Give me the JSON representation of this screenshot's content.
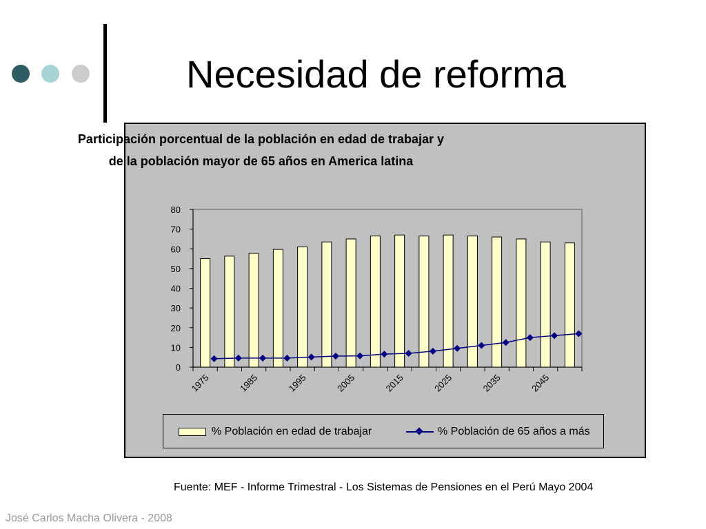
{
  "slide": {
    "title": "Necesidad de reforma",
    "source": "Fuente: MEF - Informe Trimestral - Los Sistemas de Pensiones en el Perú Mayo 2004",
    "footer": "José Carlos Macha Olivera - 2008",
    "colors": {
      "dot1": "#2e5e63",
      "dot2": "#a9d4d6",
      "dot3": "#cccccc"
    }
  },
  "chart_data": {
    "type": "bar",
    "title_line1": "Participación porcentual de la población en edad de trabajar y",
    "title_line2": "de la población mayor de 65 años en America latina",
    "categories": [
      "1975",
      "1980",
      "1985",
      "1990",
      "1995",
      "2000",
      "2005",
      "2010",
      "2015",
      "2020",
      "2025",
      "2030",
      "2035",
      "2040",
      "2045",
      "2050"
    ],
    "tick_labels": [
      "1975",
      "1985",
      "1995",
      "2005",
      "2015",
      "2025",
      "2035",
      "2045"
    ],
    "ylim": [
      0,
      80
    ],
    "yticks": [
      0,
      10,
      20,
      30,
      40,
      50,
      60,
      70,
      80
    ],
    "series": [
      {
        "name": "%  Población en edad de trabajar",
        "kind": "bar",
        "color": "#ffffcc",
        "values": [
          55,
          56.3,
          57.7,
          59.7,
          61,
          63.5,
          65,
          66.5,
          67,
          66.5,
          67,
          66.5,
          66,
          65,
          63.5,
          63
        ]
      },
      {
        "name": "%  Población de 65 años a más",
        "kind": "line",
        "color": "#000080",
        "values": [
          4.3,
          4.6,
          4.6,
          4.6,
          5.1,
          5.6,
          5.7,
          6.6,
          7.0,
          8.1,
          9.5,
          11.0,
          12.5,
          15.0,
          16.0,
          17.0
        ]
      }
    ],
    "legend_position": "bottom",
    "plot_background": "#c0c0c0"
  }
}
